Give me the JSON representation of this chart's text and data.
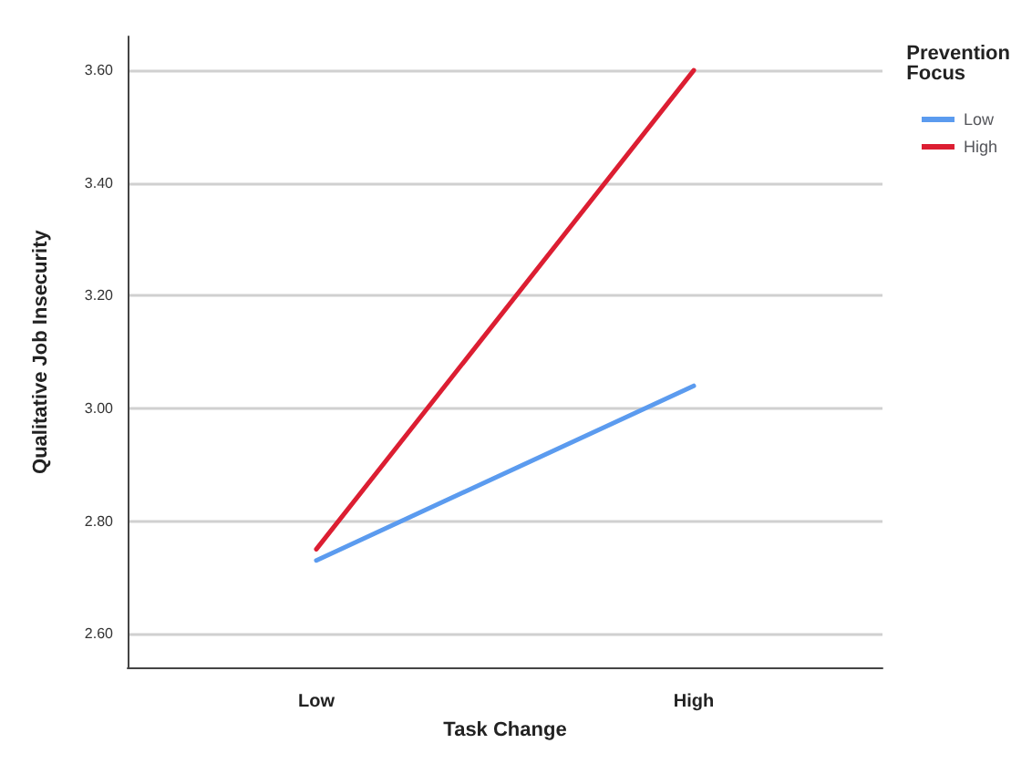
{
  "chart_data": {
    "type": "line",
    "xlabel": "Task Change",
    "ylabel": "Qualitative Job Insecurity",
    "legend_title": "Prevention\nFocus",
    "categories": [
      "Low",
      "High"
    ],
    "series": [
      {
        "name": "Low",
        "color": "#5b9bef",
        "values": [
          2.73,
          3.04
        ]
      },
      {
        "name": "High",
        "color": "#dc1e32",
        "values": [
          2.75,
          3.6
        ]
      }
    ],
    "ylim": [
      2.54,
      3.66
    ],
    "yticks": [
      {
        "value": 2.6,
        "label": "2.60"
      },
      {
        "value": 2.8,
        "label": "2.80"
      },
      {
        "value": 3.0,
        "label": "3.00"
      },
      {
        "value": 3.2,
        "label": "3.20"
      },
      {
        "value": 3.4,
        "label": "3.40"
      },
      {
        "value": 3.6,
        "label": "3.60"
      }
    ],
    "grid": "y",
    "legend": "top right",
    "marker": "none",
    "line_style": "solid"
  }
}
